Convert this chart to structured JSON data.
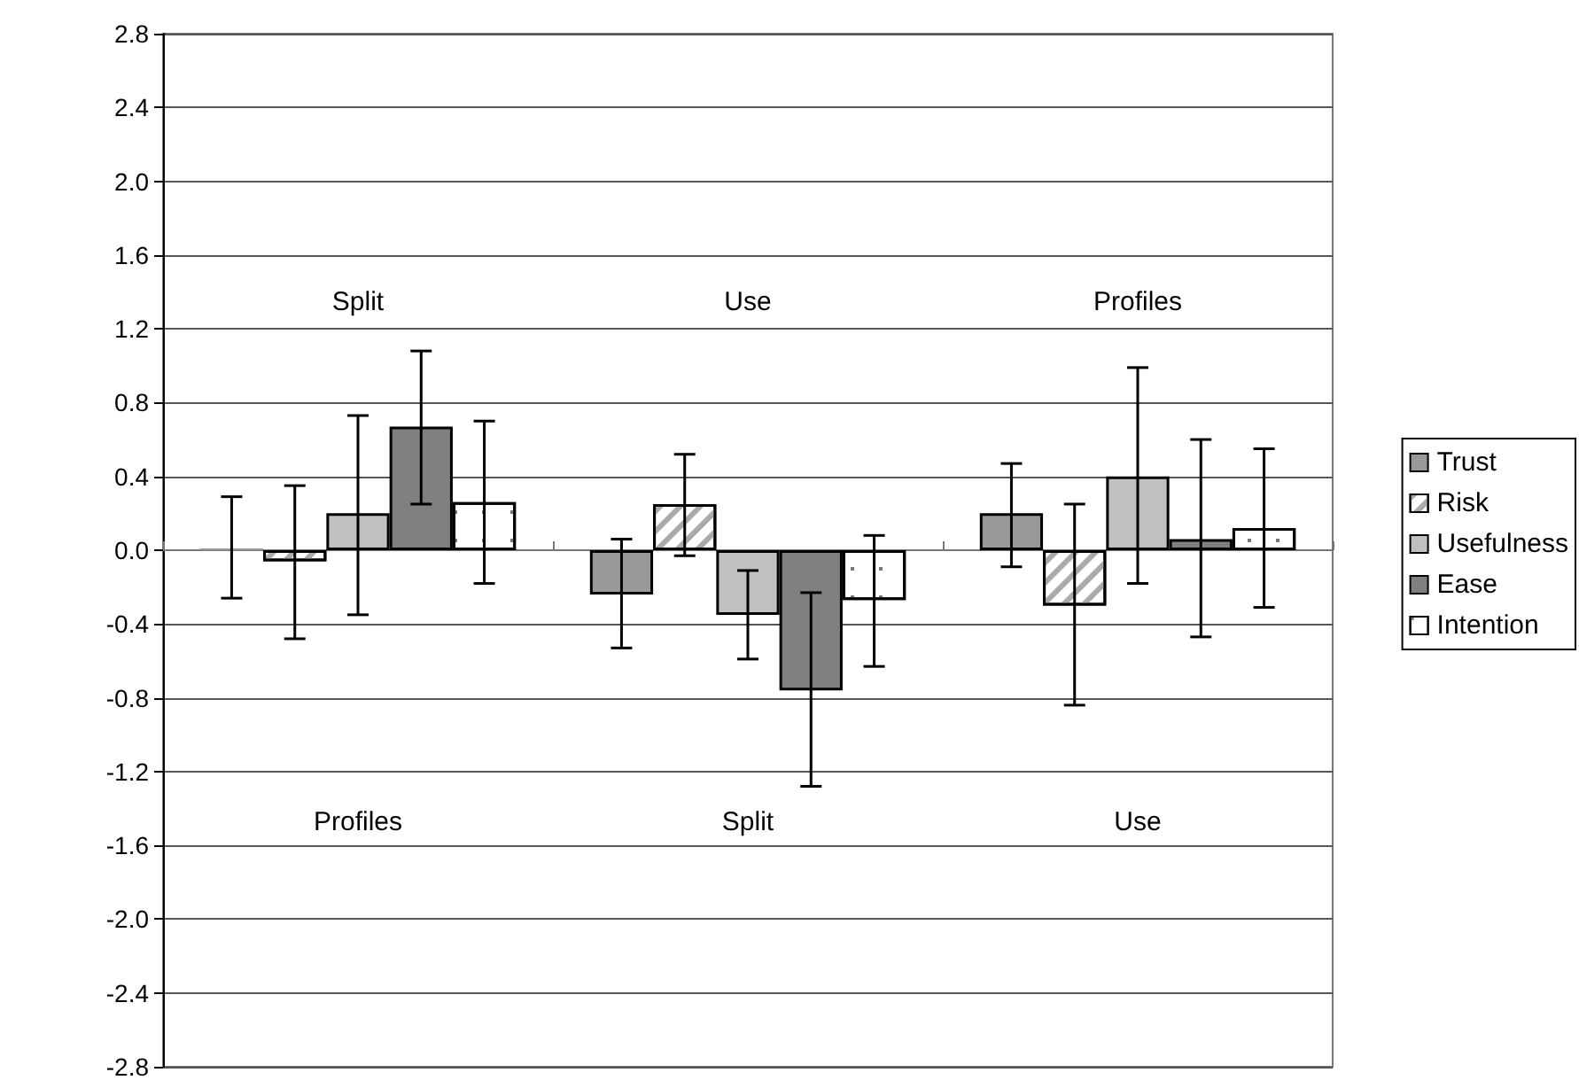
{
  "chart_data": {
    "type": "bar",
    "categories": [
      null,
      null,
      null
    ],
    "series": [
      {
        "name": "Trust",
        "color": "#999999",
        "values": [
          0.01,
          -0.24,
          0.2
        ],
        "errors": [
          [
            -0.26,
            0.29
          ],
          [
            -0.53,
            0.06
          ],
          [
            -0.09,
            0.47
          ]
        ]
      },
      {
        "name": "Risk",
        "color": "#ffffff",
        "values": [
          -0.06,
          0.25,
          -0.3
        ],
        "errors": [
          [
            -0.48,
            0.35
          ],
          [
            -0.03,
            0.52
          ],
          [
            -0.84,
            0.25
          ]
        ]
      },
      {
        "name": "Usefulness",
        "color": "#c0c0c0",
        "values": [
          0.2,
          -0.35,
          0.4
        ],
        "errors": [
          [
            -0.35,
            0.73
          ],
          [
            -0.59,
            -0.11
          ],
          [
            -0.18,
            0.99
          ]
        ]
      },
      {
        "name": "Ease",
        "color": "#808080",
        "values": [
          0.67,
          -0.76,
          0.06
        ],
        "errors": [
          [
            0.25,
            1.08
          ],
          [
            -1.28,
            -0.23
          ],
          [
            -0.47,
            0.6
          ]
        ]
      },
      {
        "name": "Intention",
        "color": "#ffffff",
        "values": [
          0.26,
          -0.27,
          0.12
        ],
        "errors": [
          [
            -0.18,
            0.7
          ],
          [
            -0.63,
            0.08
          ],
          [
            -0.31,
            0.55
          ]
        ]
      }
    ],
    "annotations": [
      "Split",
      "Use",
      "Profiles",
      "Profiles",
      "Split",
      "Use"
    ],
    "ylim": [
      -2.8,
      2.8
    ],
    "yticks": [
      -2.8,
      -2.4,
      {
        "value": -2,
        "label": "-2.0"
      },
      -1.6,
      -1.2,
      -0.8,
      -0.4,
      {
        "value": 0,
        "label": "0.0"
      },
      0.4,
      0.8,
      1.2,
      1.6,
      {
        "value": 2,
        "label": "2.0"
      },
      2.4,
      2.8
    ],
    "grid": "y",
    "legend": "right"
  }
}
